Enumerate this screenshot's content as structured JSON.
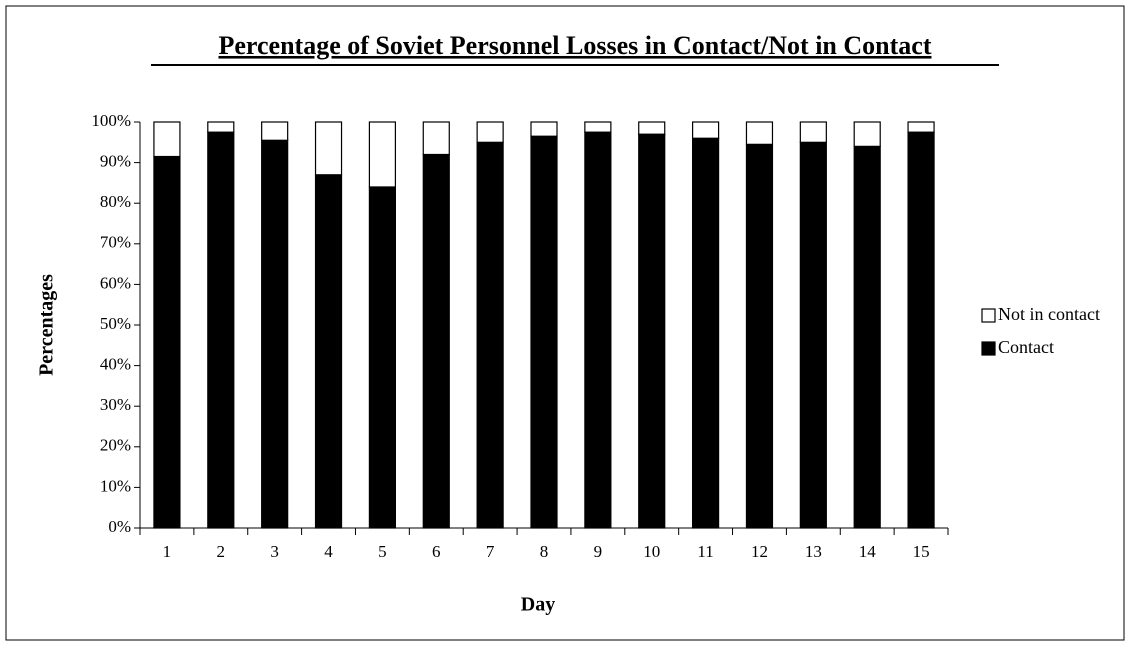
{
  "chart_data": {
    "type": "stacked_bar",
    "title": "Percentage of Soviet Personnel Losses in Contact/Not in Contact",
    "x_label": "Day",
    "y_label": "Percentages",
    "categories": [
      "1",
      "2",
      "3",
      "4",
      "5",
      "6",
      "7",
      "8",
      "9",
      "10",
      "11",
      "12",
      "13",
      "14",
      "15"
    ],
    "series": [
      {
        "name": "Contact",
        "color": "#000000",
        "values": [
          91.5,
          97.5,
          95.5,
          87,
          84,
          92,
          95,
          96.5,
          97.5,
          97,
          96,
          94.5,
          95,
          94,
          97.5
        ]
      },
      {
        "name": "Not in contact",
        "color": "#ffffff",
        "values": [
          8.5,
          2.5,
          4.5,
          13,
          16,
          8,
          5,
          3.5,
          2.5,
          3,
          4,
          5.5,
          5,
          6,
          2.5
        ]
      }
    ],
    "ylim": [
      0,
      100
    ],
    "yticks": [
      {
        "value": 0,
        "label": "0%"
      },
      {
        "value": 10,
        "label": "10%"
      },
      {
        "value": 20,
        "label": "20%"
      },
      {
        "value": 30,
        "label": "30%"
      },
      {
        "value": 40,
        "label": "40%"
      },
      {
        "value": 50,
        "label": "50%"
      },
      {
        "value": 60,
        "label": "60%"
      },
      {
        "value": 70,
        "label": "70%"
      },
      {
        "value": 80,
        "label": "80%"
      },
      {
        "value": 90,
        "label": "90%"
      },
      {
        "value": 100,
        "label": "100%"
      }
    ],
    "grid": false,
    "legend": "right"
  }
}
